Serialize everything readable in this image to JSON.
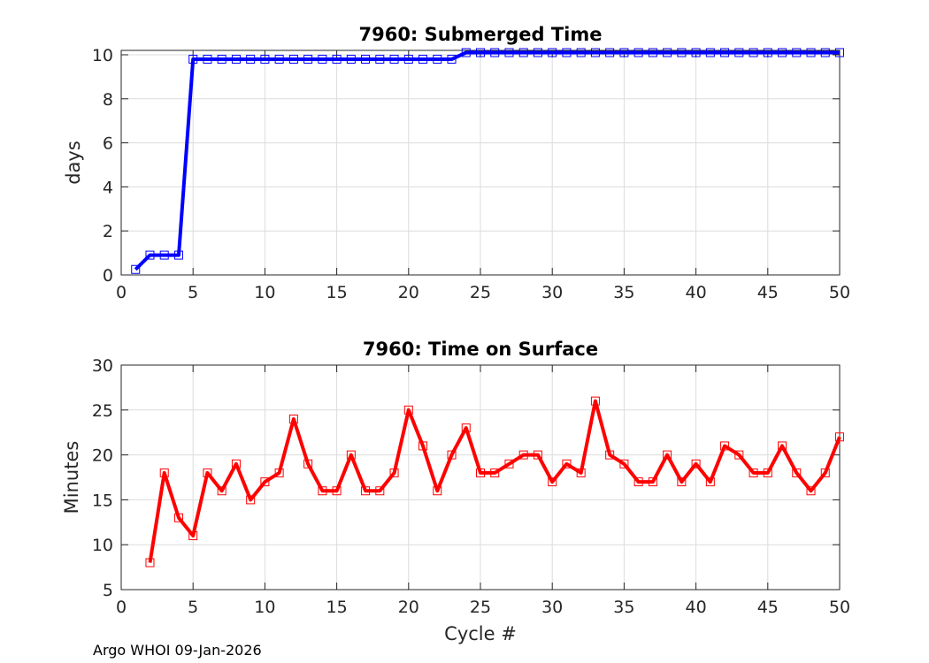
{
  "footer": "Argo WHOI 09-Jan-2026",
  "chart_data": [
    {
      "type": "line",
      "title": "7960: Submerged Time",
      "xlabel": "",
      "ylabel": "days",
      "xlim": [
        0,
        50
      ],
      "ylim": [
        0,
        10.2
      ],
      "xticks": [
        0,
        5,
        10,
        15,
        20,
        25,
        30,
        35,
        40,
        45,
        50
      ],
      "yticks": [
        0,
        2,
        4,
        6,
        8,
        10
      ],
      "grid": true,
      "color": "#0000ff",
      "marker": "square",
      "x": [
        1,
        2,
        3,
        4,
        5,
        6,
        7,
        8,
        9,
        10,
        11,
        12,
        13,
        14,
        15,
        16,
        17,
        18,
        19,
        20,
        21,
        22,
        23,
        24,
        25,
        26,
        27,
        28,
        29,
        30,
        31,
        32,
        33,
        34,
        35,
        36,
        37,
        38,
        39,
        40,
        41,
        42,
        43,
        44,
        45,
        46,
        47,
        48,
        49,
        50
      ],
      "values": [
        0.25,
        0.9,
        0.9,
        0.9,
        9.8,
        9.8,
        9.8,
        9.8,
        9.8,
        9.8,
        9.8,
        9.8,
        9.8,
        9.8,
        9.8,
        9.8,
        9.8,
        9.8,
        9.8,
        9.8,
        9.8,
        9.8,
        9.8,
        10.1,
        10.1,
        10.1,
        10.1,
        10.1,
        10.1,
        10.1,
        10.1,
        10.1,
        10.1,
        10.1,
        10.1,
        10.1,
        10.1,
        10.1,
        10.1,
        10.1,
        10.1,
        10.1,
        10.1,
        10.1,
        10.1,
        10.1,
        10.1,
        10.1,
        10.1,
        10.1
      ]
    },
    {
      "type": "line",
      "title": "7960: Time on Surface",
      "xlabel": "Cycle #",
      "ylabel": "Minutes",
      "xlim": [
        0,
        50
      ],
      "ylim": [
        5,
        30
      ],
      "xticks": [
        0,
        5,
        10,
        15,
        20,
        25,
        30,
        35,
        40,
        45,
        50
      ],
      "yticks": [
        5,
        10,
        15,
        20,
        25,
        30
      ],
      "grid": true,
      "color": "#ff0000",
      "marker": "square",
      "x": [
        2,
        3,
        4,
        5,
        6,
        7,
        8,
        9,
        10,
        11,
        12,
        13,
        14,
        15,
        16,
        17,
        18,
        19,
        20,
        21,
        22,
        23,
        24,
        25,
        26,
        27,
        28,
        29,
        30,
        31,
        32,
        33,
        34,
        35,
        36,
        37,
        38,
        39,
        40,
        41,
        42,
        43,
        44,
        45,
        46,
        47,
        48,
        49,
        50
      ],
      "values": [
        8,
        18,
        13,
        11,
        18,
        16,
        19,
        15,
        17,
        18,
        24,
        19,
        16,
        16,
        20,
        16,
        16,
        18,
        25,
        21,
        16,
        20,
        23,
        18,
        18,
        19,
        20,
        20,
        17,
        19,
        18,
        26,
        20,
        19,
        17,
        17,
        20,
        17,
        19,
        17,
        21,
        20,
        18,
        18,
        21,
        18,
        16,
        18,
        22
      ]
    }
  ]
}
